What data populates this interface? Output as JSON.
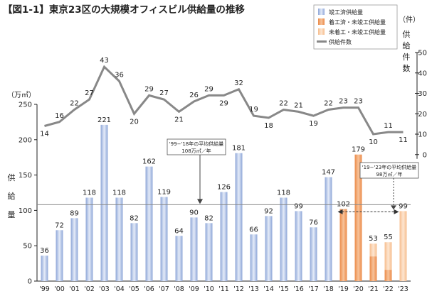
{
  "chart_data": {
    "type": "bar",
    "title": "【図1-1】東京23区の大規模オフィスビル供給量の推移",
    "categories": [
      "'99",
      "'00",
      "'01",
      "'02",
      "'03",
      "'04",
      "'05",
      "'06",
      "'07",
      "'08",
      "'09",
      "'10",
      "'11",
      "'12",
      "'13",
      "'14",
      "'15",
      "'16",
      "'17",
      "'18",
      "'19",
      "'20",
      "'21",
      "'22",
      "'23"
    ],
    "left_axis": {
      "unit": "（万㎡）",
      "label": "供給量",
      "ylim": [
        0,
        250
      ],
      "ticks": [
        0,
        50,
        100,
        150,
        200,
        250
      ]
    },
    "right_axis": {
      "unit": "（件）",
      "label": "供給件数",
      "ylim": [
        0,
        50
      ],
      "ticks": [
        0,
        10,
        20,
        30,
        40,
        50
      ]
    },
    "series": [
      {
        "name": "竣工済供給量",
        "kind": "bar",
        "color": "#9db2de",
        "values": [
          36,
          72,
          89,
          118,
          221,
          118,
          82,
          162,
          119,
          64,
          90,
          82,
          126,
          181,
          66,
          92,
          118,
          99,
          76,
          147,
          null,
          null,
          null,
          null,
          null
        ]
      },
      {
        "name": "着工済・未竣工供給量",
        "kind": "bar",
        "color": "#ef9a5f",
        "values": [
          null,
          null,
          null,
          null,
          null,
          null,
          null,
          null,
          null,
          null,
          null,
          null,
          null,
          null,
          null,
          null,
          null,
          null,
          null,
          null,
          102,
          179,
          35,
          16,
          null
        ]
      },
      {
        "name": "未着工・未竣工供給量",
        "kind": "bar",
        "color": "#f8caa0",
        "values": [
          null,
          null,
          null,
          null,
          null,
          null,
          null,
          null,
          null,
          null,
          null,
          null,
          null,
          null,
          null,
          null,
          null,
          null,
          null,
          null,
          null,
          null,
          18,
          39,
          99
        ]
      },
      {
        "name": "供給件数",
        "kind": "line",
        "color": "#888888",
        "values": [
          14,
          16,
          22,
          27,
          43,
          36,
          20,
          29,
          27,
          21,
          26,
          29,
          29,
          32,
          19,
          18,
          22,
          21,
          19,
          22,
          23,
          23,
          10,
          11,
          11
        ]
      }
    ],
    "bar_labels": [
      36,
      72,
      89,
      118,
      221,
      118,
      82,
      162,
      119,
      64,
      90,
      82,
      126,
      181,
      66,
      92,
      118,
      99,
      76,
      147,
      102,
      179,
      53,
      55,
      99
    ],
    "reference_lines": [
      {
        "value": 108,
        "label_line1": "'99−'18年の平均供給量",
        "label_line2": "108万㎡／年"
      },
      {
        "value": 98,
        "label_line1": "'19−'23年の平均供給量",
        "label_line2": "98万㎡／年"
      }
    ],
    "legend_position": "top-right",
    "grid": false
  }
}
